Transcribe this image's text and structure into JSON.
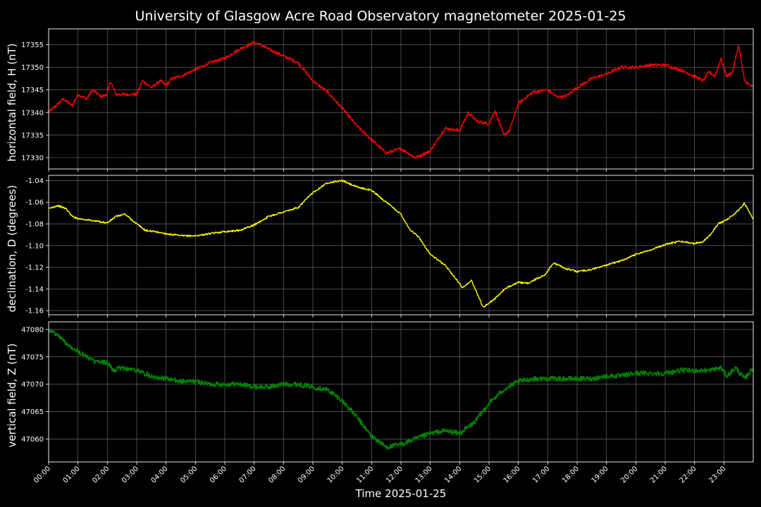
{
  "chart_data": {
    "type": "line",
    "title": "University of Glasgow Acre Road Observatory magnetometer 2025-01-25",
    "xlabel": "Time 2025-01-25",
    "x_range_hours": [
      0,
      24
    ],
    "x_tick_labels": [
      "00:00",
      "01:00",
      "02:00",
      "03:00",
      "04:00",
      "05:00",
      "06:00",
      "07:00",
      "08:00",
      "09:00",
      "10:00",
      "11:00",
      "12:00",
      "13:00",
      "14:00",
      "15:00",
      "16:00",
      "17:00",
      "18:00",
      "19:00",
      "20:00",
      "21:00",
      "22:00",
      "23:00"
    ],
    "grid": true,
    "panels": [
      {
        "ylabel": "horizontal field, H (nT)",
        "color": "#ff0000",
        "ylim": [
          17327.5,
          17358.5
        ],
        "yticks": [
          17330,
          17335,
          17340,
          17345,
          17350,
          17355
        ],
        "tick_decimals": 0,
        "noise": 0.35,
        "x_hours": [
          0,
          0.5,
          0.8,
          1.0,
          1.3,
          1.5,
          1.8,
          2.0,
          2.1,
          2.3,
          2.5,
          3.0,
          3.2,
          3.5,
          3.8,
          4.0,
          4.2,
          4.5,
          5.0,
          5.5,
          6.0,
          6.5,
          7.0,
          7.2,
          7.5,
          8.0,
          8.5,
          9.0,
          9.5,
          10.0,
          10.5,
          11.0,
          11.5,
          12.0,
          12.5,
          13.0,
          13.5,
          14.0,
          14.3,
          14.6,
          15.0,
          15.2,
          15.5,
          15.7,
          16.0,
          16.5,
          17.0,
          17.3,
          17.6,
          18.0,
          18.5,
          19.0,
          19.5,
          20.0,
          20.5,
          21.0,
          21.5,
          22.0,
          22.3,
          22.5,
          22.7,
          22.9,
          23.1,
          23.3,
          23.5,
          23.7,
          24.0
        ],
        "y": [
          17340,
          17343,
          17341.5,
          17344,
          17343,
          17345,
          17343.5,
          17344,
          17347,
          17344,
          17344,
          17344,
          17347,
          17345.5,
          17347,
          17346,
          17347.5,
          17348,
          17349.5,
          17351,
          17352,
          17354,
          17355.5,
          17355,
          17354,
          17352.5,
          17351,
          17347,
          17344.5,
          17341,
          17337,
          17334,
          17331,
          17332,
          17330,
          17331.5,
          17336.5,
          17336,
          17340,
          17338,
          17337.5,
          17340.5,
          17335,
          17336,
          17342,
          17344.5,
          17345,
          17343.5,
          17343.5,
          17345.5,
          17347.5,
          17348.5,
          17350,
          17350,
          17350.5,
          17350.5,
          17349.5,
          17348,
          17347,
          17349,
          17348,
          17352,
          17348,
          17349,
          17355,
          17347,
          17345.5
        ]
      },
      {
        "ylabel": "declination, D (degrees)",
        "color": "#ffff00",
        "ylim": [
          -1.1638,
          -1.0352
        ],
        "yticks": [
          -1.16,
          -1.14,
          -1.12,
          -1.1,
          -1.08,
          -1.06,
          -1.04
        ],
        "tick_decimals": 2,
        "noise": 0.0008,
        "x_hours": [
          0,
          0.3,
          0.6,
          0.8,
          1.0,
          1.5,
          2.0,
          2.3,
          2.6,
          3.0,
          3.3,
          3.6,
          4.0,
          4.5,
          5.0,
          5.5,
          6.0,
          6.5,
          7.0,
          7.5,
          8.0,
          8.5,
          9.0,
          9.5,
          10.0,
          10.5,
          11.0,
          11.5,
          12.0,
          12.3,
          12.6,
          13.0,
          13.5,
          13.8,
          14.1,
          14.4,
          14.8,
          15.2,
          15.5,
          15.8,
          16.0,
          16.3,
          16.6,
          16.9,
          17.2,
          17.6,
          18.0,
          18.5,
          19.0,
          19.5,
          20.0,
          20.5,
          21.0,
          21.5,
          22.0,
          22.3,
          22.5,
          22.8,
          23.1,
          23.4,
          23.7,
          24.0
        ],
        "y": [
          -1.066,
          -1.063,
          -1.066,
          -1.073,
          -1.075,
          -1.077,
          -1.079,
          -1.073,
          -1.071,
          -1.08,
          -1.086,
          -1.087,
          -1.089,
          -1.091,
          -1.091,
          -1.089,
          -1.087,
          -1.086,
          -1.081,
          -1.073,
          -1.069,
          -1.065,
          -1.051,
          -1.042,
          -1.04,
          -1.046,
          -1.049,
          -1.06,
          -1.071,
          -1.085,
          -1.092,
          -1.108,
          -1.118,
          -1.128,
          -1.139,
          -1.132,
          -1.157,
          -1.149,
          -1.141,
          -1.136,
          -1.134,
          -1.135,
          -1.131,
          -1.127,
          -1.116,
          -1.121,
          -1.124,
          -1.122,
          -1.118,
          -1.114,
          -1.108,
          -1.104,
          -1.099,
          -1.096,
          -1.098,
          -1.096,
          -1.091,
          -1.08,
          -1.076,
          -1.07,
          -1.061,
          -1.076
        ]
      },
      {
        "ylabel": "vertical field, Z (nT)",
        "color": "#008000",
        "ylim": [
          47055.8,
          47081.4
        ],
        "yticks": [
          47060,
          47065,
          47070,
          47075,
          47080
        ],
        "tick_decimals": 0,
        "noise": 0.45,
        "x_hours": [
          0,
          0.3,
          0.6,
          1.0,
          1.3,
          1.6,
          2.0,
          2.2,
          2.5,
          3.0,
          3.5,
          4.0,
          4.5,
          5.0,
          5.5,
          6.0,
          6.5,
          7.0,
          7.5,
          8.0,
          8.5,
          9.0,
          9.5,
          10.0,
          10.5,
          11.0,
          11.5,
          12.0,
          12.5,
          13.0,
          13.5,
          14.0,
          14.5,
          15.0,
          15.5,
          16.0,
          16.5,
          17.0,
          17.5,
          18.0,
          18.5,
          19.0,
          19.5,
          20.0,
          20.5,
          21.0,
          21.5,
          22.0,
          22.5,
          22.9,
          23.1,
          23.4,
          23.7,
          24.0
        ],
        "y": [
          47080,
          47079,
          47077.5,
          47076,
          47075,
          47074,
          47074,
          47072.5,
          47073,
          47072.5,
          47071.5,
          47071,
          47070.5,
          47070.5,
          47070,
          47070,
          47070,
          47069.5,
          47069.5,
          47070,
          47070,
          47069.5,
          47069,
          47067,
          47064,
          47060.5,
          47058.5,
          47059,
          47060,
          47061,
          47061.5,
          47061,
          47063,
          47066.5,
          47069,
          47070.5,
          47071,
          47071,
          47071,
          47071,
          47071,
          47071.5,
          47071.5,
          47072,
          47072,
          47072,
          47072.5,
          47072.5,
          47072.5,
          47073,
          47071.5,
          47073,
          47071,
          47073
        ]
      }
    ]
  }
}
